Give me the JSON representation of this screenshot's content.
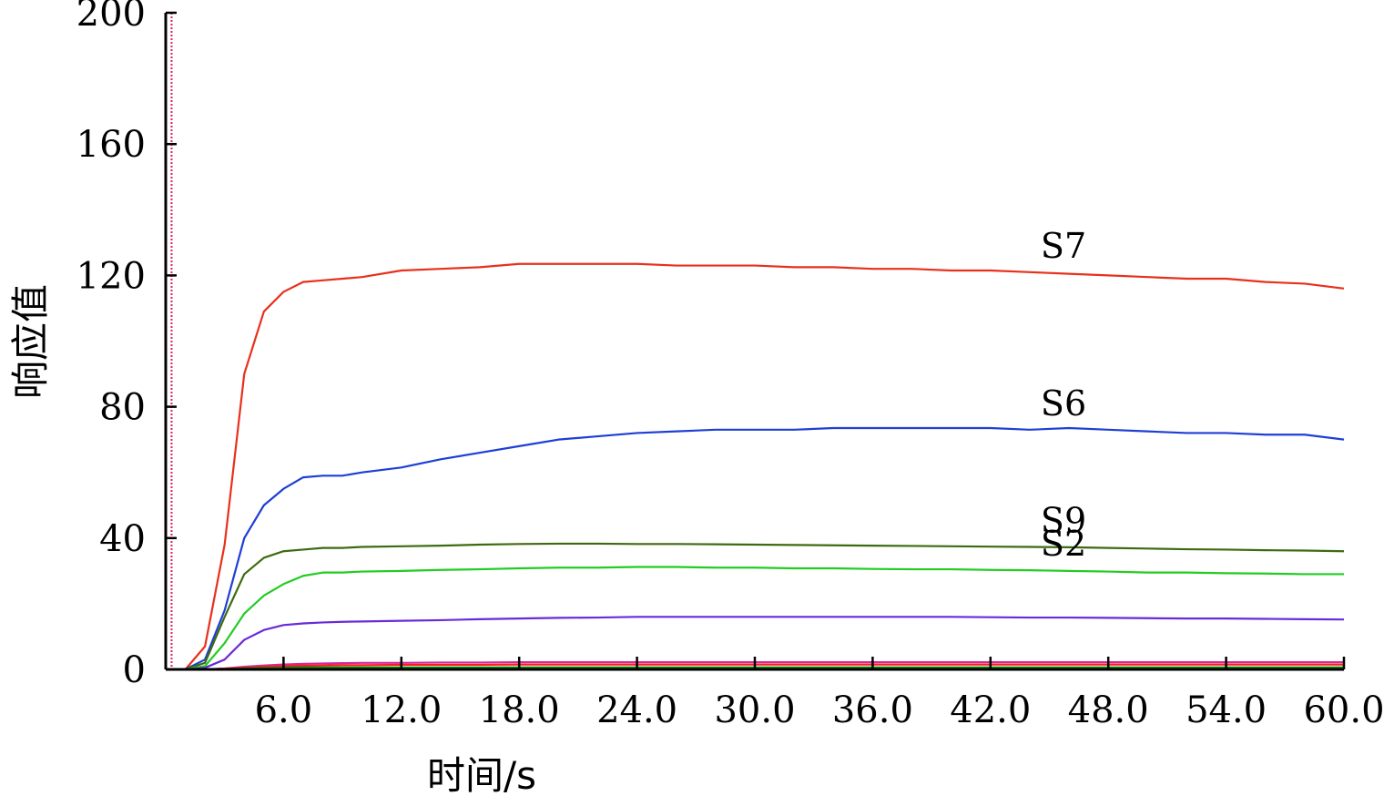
{
  "chart_data": {
    "type": "line",
    "xlabel": "时间/s",
    "ylabel": "响应值",
    "xlim": [
      0,
      60
    ],
    "ylim": [
      0,
      200
    ],
    "x_ticks": [
      "6.0",
      "12.0",
      "18.0",
      "24.0",
      "30.0",
      "36.0",
      "42.0",
      "48.0",
      "54.0",
      "60.0"
    ],
    "y_ticks": [
      "0",
      "40",
      "80",
      "120",
      "160",
      "200"
    ],
    "grid": false,
    "x": [
      0,
      1,
      2,
      3,
      4,
      5,
      6,
      7,
      8,
      9,
      10,
      12,
      14,
      16,
      18,
      20,
      22,
      24,
      26,
      28,
      30,
      32,
      34,
      36,
      38,
      40,
      42,
      44,
      46,
      48,
      50,
      52,
      54,
      56,
      58,
      60
    ],
    "series": [
      {
        "name": "S7",
        "color": "#e8301c",
        "values": [
          0,
          0,
          7,
          38,
          90,
          109,
          115,
          118,
          118.5,
          119,
          119.5,
          121.5,
          122,
          122.5,
          123.5,
          123.5,
          123.5,
          123.5,
          123,
          123,
          123,
          122.5,
          122.5,
          122,
          122,
          121.5,
          121.5,
          121,
          120.5,
          120,
          119.5,
          119,
          119,
          118,
          117.5,
          116
        ]
      },
      {
        "name": "S6",
        "color": "#1e3fd6",
        "values": [
          0,
          0,
          3,
          18,
          40,
          50,
          55,
          58.5,
          59,
          59,
          60,
          61.5,
          64,
          66,
          68,
          70,
          71,
          72,
          72.5,
          73,
          73,
          73,
          73.5,
          73.5,
          73.5,
          73.5,
          73.5,
          73,
          73.5,
          73,
          72.5,
          72,
          72,
          71.5,
          71.5,
          70
        ]
      },
      {
        "name": "S9",
        "color": "#3d6b10",
        "values": [
          0,
          0,
          2,
          16,
          29,
          34,
          36,
          36.5,
          37,
          37,
          37.3,
          37.5,
          37.7,
          38,
          38.2,
          38.3,
          38.3,
          38.2,
          38.2,
          38.1,
          38,
          37.9,
          37.8,
          37.7,
          37.6,
          37.5,
          37.4,
          37.3,
          37.2,
          37,
          36.8,
          36.6,
          36.5,
          36.3,
          36.2,
          36
        ]
      },
      {
        "name": "S2",
        "color": "#22cc22",
        "values": [
          0,
          0,
          1,
          8,
          17,
          22.5,
          26,
          28.5,
          29.5,
          29.5,
          29.8,
          30,
          30.3,
          30.5,
          30.8,
          31,
          31,
          31.2,
          31.2,
          31,
          31,
          30.8,
          30.8,
          30.6,
          30.5,
          30.5,
          30.3,
          30.2,
          30,
          29.8,
          29.5,
          29.5,
          29.3,
          29.2,
          29,
          29
        ]
      },
      {
        "name": "",
        "color": "#6a2ad8",
        "values": [
          0,
          0,
          0.5,
          3,
          9,
          12,
          13.5,
          14,
          14.3,
          14.5,
          14.6,
          14.8,
          15,
          15.3,
          15.5,
          15.7,
          15.8,
          16,
          16,
          16,
          16,
          16,
          16,
          16,
          16,
          16,
          15.9,
          15.8,
          15.8,
          15.7,
          15.6,
          15.5,
          15.5,
          15.4,
          15.3,
          15.2
        ]
      },
      {
        "name": "",
        "color": "#d02aa0",
        "values": [
          0,
          0,
          0,
          0.3,
          0.8,
          1.2,
          1.5,
          1.7,
          1.8,
          1.9,
          2,
          2,
          2.1,
          2.1,
          2.2,
          2.2,
          2.2,
          2.2,
          2.2,
          2.2,
          2.2,
          2.2,
          2.2,
          2.2,
          2.2,
          2.2,
          2.2,
          2.2,
          2.2,
          2.2,
          2.2,
          2.2,
          2.2,
          2.2,
          2.2,
          2.2
        ]
      },
      {
        "name": "",
        "color": "#ff1a1a",
        "values": [
          0,
          0,
          0,
          0.2,
          0.5,
          0.8,
          1,
          1.1,
          1.2,
          1.3,
          1.3,
          1.4,
          1.4,
          1.4,
          1.5,
          1.5,
          1.5,
          1.5,
          1.5,
          1.5,
          1.5,
          1.5,
          1.5,
          1.5,
          1.5,
          1.5,
          1.5,
          1.5,
          1.5,
          1.5,
          1.5,
          1.5,
          1.5,
          1.5,
          1.5,
          1.5
        ]
      },
      {
        "name": "",
        "color": "#0a8a0a",
        "values": [
          0,
          0,
          0,
          0.1,
          0.3,
          0.4,
          0.5,
          0.6,
          0.6,
          0.6,
          0.6,
          0.6,
          0.6,
          0.6,
          0.6,
          0.6,
          0.6,
          0.6,
          0.6,
          0.6,
          0.6,
          0.6,
          0.6,
          0.6,
          0.6,
          0.6,
          0.6,
          0.6,
          0.6,
          0.6,
          0.6,
          0.6,
          0.6,
          0.6,
          0.6,
          0.6
        ]
      }
    ],
    "series_labels": [
      {
        "text": "S7",
        "series": "S7",
        "at_x": 44
      },
      {
        "text": "S6",
        "series": "S6",
        "at_x": 44
      },
      {
        "text": "S9",
        "series": "S9",
        "at_x": 44
      },
      {
        "text": "S2",
        "series": "S2",
        "at_x": 44
      }
    ],
    "marker_line": {
      "x": 0.3,
      "color": "#e0206a"
    }
  }
}
